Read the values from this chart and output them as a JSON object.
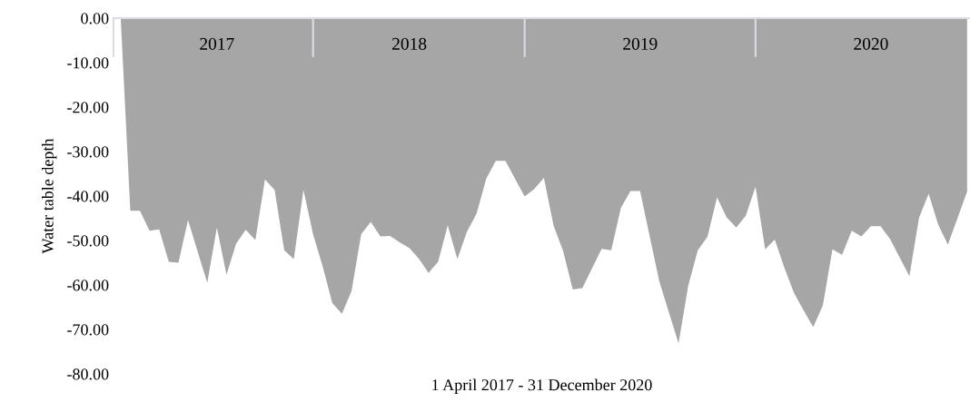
{
  "chart_data": {
    "type": "area",
    "xlabel": "1 April 2017 - 31 December 2020",
    "ylabel": "Water table depth",
    "categories": [
      null,
      null,
      null,
      null,
      null,
      null,
      null,
      null,
      null,
      null,
      "2017",
      null,
      null,
      null,
      null,
      null,
      null,
      null,
      null,
      null,
      null,
      null,
      null,
      null,
      null,
      null,
      null,
      null,
      null,
      null,
      "2018",
      null,
      null,
      null,
      null,
      null,
      null,
      null,
      null,
      null,
      null,
      null,
      null,
      null,
      null,
      null,
      null,
      null,
      null,
      null,
      null,
      null,
      null,
      null,
      "2019",
      null,
      null,
      null,
      null,
      null,
      null,
      null,
      null,
      null,
      null,
      null,
      null,
      null,
      null,
      null,
      null,
      null,
      null,
      null,
      null,
      null,
      null,
      null,
      "2020",
      null,
      null,
      null,
      null,
      null,
      null,
      null,
      null,
      null,
      null
    ],
    "series": [
      {
        "color": "#a6a6a6",
        "values": [
          0,
          -43.3,
          -43.3,
          -47.8,
          -47.5,
          -54.8,
          -55.0,
          -45.4,
          -52.5,
          -59.5,
          -47.1,
          -57.7,
          -50.7,
          -47.6,
          -49.9,
          -36.3,
          -38.6,
          -52.2,
          -54.2,
          -38.6,
          -48.6,
          -55.8,
          -64.1,
          -66.5,
          -61.4,
          -48.6,
          -45.8,
          -49.1,
          -49.0,
          -50.4,
          -51.7,
          -54.1,
          -57.3,
          -54.8,
          -46.6,
          -54.2,
          -48.0,
          -44.0,
          -36.1,
          -32.1,
          -32.1,
          -36.1,
          -40.1,
          -38.4,
          -35.9,
          -46.6,
          -52.4,
          -61.0,
          -60.7,
          -56.3,
          -51.9,
          -52.2,
          -42.7,
          -38.9,
          -38.9,
          -49.1,
          -59.2,
          -66.2,
          -73.1,
          -60.2,
          -52.2,
          -49.2,
          -40.3,
          -44.8,
          -47.1,
          -44.4,
          -37.9,
          -52.0,
          -49.8,
          -56.1,
          -61.8,
          -65.7,
          -69.5,
          -64.6,
          -52.0,
          -53.2,
          -47.8,
          -49.1,
          -46.8,
          -46.8,
          -49.7,
          -53.9,
          -58.0,
          -44.9,
          -39.5,
          -46.5,
          -50.9,
          -45.0,
          -39.0
        ]
      }
    ],
    "ylim": [
      -80,
      0
    ],
    "yticks": [
      {
        "value": 0,
        "label": "0.00"
      },
      {
        "value": -10,
        "label": "-10.00"
      },
      {
        "value": -20,
        "label": "-20.00"
      },
      {
        "value": -30,
        "label": "-30.00"
      },
      {
        "value": -40,
        "label": "-40.00"
      },
      {
        "value": -50,
        "label": "-50.00"
      },
      {
        "value": -60,
        "label": "-60.00"
      },
      {
        "value": -70,
        "label": "-70.00"
      },
      {
        "value": -80,
        "label": "-80.00"
      }
    ]
  }
}
